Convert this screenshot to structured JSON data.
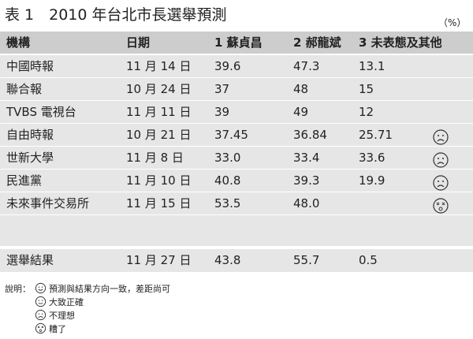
{
  "header": {
    "title": "表 1　2010 年台北市長選舉預測",
    "unit": "（%）"
  },
  "table": {
    "columns": [
      "機構",
      "日期",
      "1 蘇貞昌",
      "2 郝龍斌",
      "3 未表態及其他"
    ],
    "rows": [
      [
        "中國時報",
        "11 月 14 日",
        "39.6",
        "47.3",
        "13.1"
      ],
      [
        "聯合報",
        "10 月 24 日",
        "37",
        "48",
        "15"
      ],
      [
        "TVBS 電視台",
        "11 月 11 日",
        "39",
        "49",
        "12"
      ],
      [
        "自由時報",
        "10 月 21 日",
        "37.45",
        "36.84",
        "25.71"
      ],
      [
        "世新大學",
        "11 月 8 日",
        "33.0",
        "33.4",
        "33.6"
      ],
      [
        "民進黨",
        "11 月 10 日",
        "40.8",
        "39.3",
        "19.9"
      ],
      [
        "未來事件交易所",
        "11 月 15 日",
        "53.5",
        "48.0"
      ]
    ],
    "result": [
      "選舉結果",
      "11 月 27 日",
      "43.8",
      "55.7",
      "0.5"
    ]
  },
  "notes": {
    "label": "說明：",
    "items": [
      "預測與結果方向一致，差距尚可",
      "大致正確",
      "不理想",
      "糟了"
    ]
  }
}
